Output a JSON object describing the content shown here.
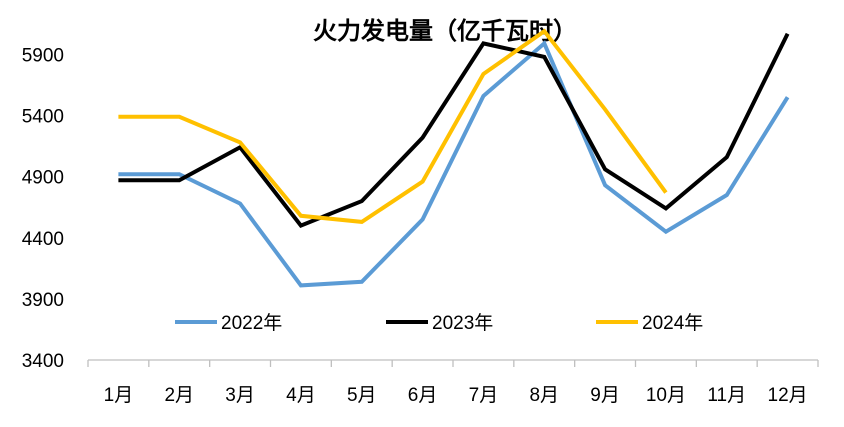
{
  "chart_data": {
    "type": "line",
    "title": "火力发电量（亿千瓦时）",
    "xlabel": "",
    "ylabel": "",
    "categories": [
      "1月",
      "2月",
      "3月",
      "4月",
      "5月",
      "6月",
      "7月",
      "8月",
      "9月",
      "10月",
      "11月",
      "12月"
    ],
    "ylim": [
      3400,
      6100
    ],
    "yticks": [
      3400,
      3900,
      4400,
      4900,
      5400,
      5900
    ],
    "grid": false,
    "legend_position": "inside-bottom",
    "series": [
      {
        "name": "2022年",
        "color": "#5B9BD5",
        "values": [
          4920,
          4920,
          4680,
          4010,
          4040,
          4550,
          5560,
          5990,
          4830,
          4450,
          4750,
          5550
        ]
      },
      {
        "name": "2023年",
        "color": "#000000",
        "values": [
          4870,
          4870,
          5140,
          4500,
          4700,
          5220,
          5990,
          5880,
          4960,
          4640,
          5060,
          6070
        ]
      },
      {
        "name": "2024年",
        "color": "#FFC000",
        "values": [
          5390,
          5390,
          5180,
          4580,
          4530,
          4860,
          5740,
          6090,
          5450,
          4770,
          null,
          null
        ]
      }
    ]
  }
}
